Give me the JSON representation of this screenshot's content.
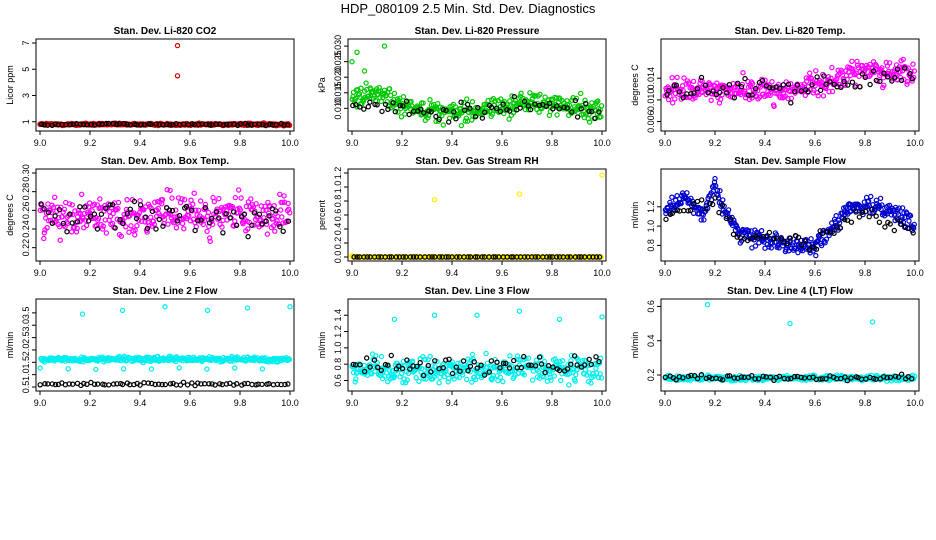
{
  "main_title": "HDP_080109  2.5 Min. Std. Dev. Diagnostics",
  "chart_data": [
    {
      "type": "scatter",
      "title": "Stan. Dev. Li-820 CO2",
      "ylabel": "Licor ppm",
      "xlim": [
        9.0,
        10.0
      ],
      "ylim": [
        0.6,
        7.0
      ],
      "xticks": [
        "9.0",
        "9.2",
        "9.4",
        "9.6",
        "9.8",
        "10.0"
      ],
      "yticks": [
        1,
        3,
        5,
        7
      ],
      "ytick_labels": [
        "1",
        "3",
        "5",
        "7"
      ],
      "series": [
        {
          "name": "main",
          "color": "#cc0000",
          "base": 0.8,
          "noise": 0.07,
          "outliers": [
            [
              9.55,
              6.8
            ],
            [
              9.55,
              4.5
            ]
          ]
        },
        {
          "name": "black",
          "color": "#000000",
          "base": 0.8,
          "noise": 0.07
        }
      ]
    },
    {
      "type": "scatter",
      "title": "Stan. Dev. Li-820 Pressure",
      "ylabel": "kPa",
      "xlim": [
        9.0,
        10.0
      ],
      "ylim": [
        0.004,
        0.031
      ],
      "xticks": [
        "9.0",
        "9.2",
        "9.4",
        "9.6",
        "9.8",
        "10.0"
      ],
      "yticks": [
        0.01,
        0.015,
        0.02,
        0.025,
        0.03
      ],
      "ytick_labels": [
        "0.010",
        "0.015",
        "0.020",
        "0.025",
        "0.030"
      ],
      "series": [
        {
          "name": "main",
          "color": "#00c800",
          "trend": [
            [
              9.0,
              0.013
            ],
            [
              9.1,
              0.015
            ],
            [
              9.2,
              0.011
            ],
            [
              9.4,
              0.0085
            ],
            [
              9.6,
              0.0105
            ],
            [
              9.7,
              0.012
            ],
            [
              10.0,
              0.0095
            ]
          ],
          "noise": 0.0028,
          "outliers": [
            [
              9.0,
              0.025
            ],
            [
              9.02,
              0.028
            ],
            [
              9.05,
              0.022
            ],
            [
              9.13,
              0.03
            ]
          ]
        },
        {
          "name": "black",
          "color": "#000000",
          "trend": [
            [
              9.0,
              0.011
            ],
            [
              9.4,
              0.008
            ],
            [
              9.7,
              0.012
            ],
            [
              10.0,
              0.008
            ]
          ],
          "noise": 0.0025
        }
      ]
    },
    {
      "type": "scatter",
      "title": "Stan. Dev. Li-820 Temp.",
      "ylabel": "degrees C",
      "xlim": [
        9.0,
        10.0
      ],
      "ylim": [
        0.005,
        0.0205
      ],
      "xticks": [
        "9.0",
        "9.2",
        "9.4",
        "9.6",
        "9.8",
        "10.0"
      ],
      "yticks": [
        0.006,
        0.01,
        0.014
      ],
      "ytick_labels": [
        "0.006",
        "0.010",
        "0.014"
      ],
      "series": [
        {
          "name": "main",
          "color": "#ff00ff",
          "trend": [
            [
              9.0,
              0.0115
            ],
            [
              9.3,
              0.012
            ],
            [
              9.5,
              0.0115
            ],
            [
              9.65,
              0.0135
            ],
            [
              9.8,
              0.0155
            ],
            [
              10.0,
              0.015
            ]
          ],
          "noise": 0.0018
        },
        {
          "name": "black",
          "color": "#000000",
          "trend": [
            [
              9.0,
              0.0115
            ],
            [
              9.5,
              0.012
            ],
            [
              10.0,
              0.015
            ]
          ],
          "noise": 0.0015
        }
      ]
    },
    {
      "type": "scatter",
      "title": "Stan. Dev. Amb. Box Temp.",
      "ylabel": "degrees C",
      "xlim": [
        9.0,
        10.0
      ],
      "ylim": [
        0.21,
        0.3
      ],
      "xticks": [
        "9.0",
        "9.2",
        "9.4",
        "9.6",
        "9.8",
        "10.0"
      ],
      "yticks": [
        0.22,
        0.24,
        0.26,
        0.28,
        0.3
      ],
      "ytick_labels": [
        "0.22",
        "0.24",
        "0.26",
        "0.28",
        "0.30"
      ],
      "series": [
        {
          "name": "main",
          "color": "#ff00ff",
          "base": 0.255,
          "noise": 0.016
        },
        {
          "name": "black",
          "color": "#000000",
          "base": 0.252,
          "noise": 0.015
        }
      ]
    },
    {
      "type": "scatter",
      "title": "Stan. Dev. Gas Stream RH",
      "ylabel": "percent",
      "xlim": [
        9.0,
        10.0
      ],
      "ylim": [
        0.0,
        1.2
      ],
      "xticks": [
        "9.0",
        "9.2",
        "9.4",
        "9.6",
        "9.8",
        "10.0"
      ],
      "yticks": [
        0.0,
        0.2,
        0.4,
        0.6,
        0.8,
        1.0,
        1.2
      ],
      "ytick_labels": [
        "0.0",
        "0.2",
        "0.4",
        "0.6",
        "0.8",
        "1.0",
        "1.2"
      ],
      "series": [
        {
          "name": "main",
          "color": "#ffee00",
          "base": 0.0,
          "noise": 0.0,
          "outliers": [
            [
              9.33,
              0.82
            ],
            [
              9.67,
              0.9
            ],
            [
              10.0,
              1.17
            ],
            [
              9.0,
              0.02
            ]
          ]
        },
        {
          "name": "black",
          "color": "#000000",
          "base": 0.0,
          "noise": 0.0
        }
      ]
    },
    {
      "type": "scatter",
      "title": "Stan. Dev. Sample Flow",
      "ylabel": "ml/min",
      "xlim": [
        9.0,
        10.0
      ],
      "ylim": [
        0.68,
        1.55
      ],
      "xticks": [
        "9.0",
        "9.2",
        "9.4",
        "9.6",
        "9.8",
        "10.0"
      ],
      "yticks": [
        0.8,
        1.0,
        1.2
      ],
      "ytick_labels": [
        "0.8",
        "1.0",
        "1.2"
      ],
      "series": [
        {
          "name": "main",
          "color": "#0000cc",
          "trend": [
            [
              9.0,
              1.15
            ],
            [
              9.08,
              1.3
            ],
            [
              9.15,
              1.1
            ],
            [
              9.2,
              1.42
            ],
            [
              9.23,
              1.2
            ],
            [
              9.3,
              0.92
            ],
            [
              9.5,
              0.82
            ],
            [
              9.6,
              0.8
            ],
            [
              9.66,
              0.95
            ],
            [
              9.72,
              1.15
            ],
            [
              9.85,
              1.22
            ],
            [
              9.95,
              1.1
            ],
            [
              10.0,
              0.98
            ]
          ],
          "noise": 0.07
        },
        {
          "name": "black",
          "color": "#000000",
          "trend": [
            [
              9.0,
              1.1
            ],
            [
              9.2,
              1.3
            ],
            [
              9.3,
              0.9
            ],
            [
              9.6,
              0.82
            ],
            [
              9.75,
              1.15
            ],
            [
              10.0,
              1.0
            ]
          ],
          "noise": 0.07
        }
      ]
    },
    {
      "type": "scatter",
      "title": "Stan. Dev. Line 2 Flow",
      "ylabel": "ml/min",
      "xlim": [
        9.0,
        10.0
      ],
      "ylim": [
        0.5,
        3.9
      ],
      "xticks": [
        "9.0",
        "9.2",
        "9.4",
        "9.6",
        "9.8",
        "10.0"
      ],
      "yticks": [
        0.5,
        1.0,
        1.5,
        2.0,
        2.5,
        3.0,
        3.5
      ],
      "ytick_labels": [
        "0.5",
        "1.0",
        "1.5",
        "2.0",
        "2.5",
        "3.0",
        "3.5"
      ],
      "series": [
        {
          "name": "main",
          "color": "#00eeee",
          "base": 1.62,
          "noise": 0.08,
          "outliers": [
            [
              9.17,
              3.45
            ],
            [
              9.33,
              3.6
            ],
            [
              9.5,
              3.75
            ],
            [
              9.67,
              3.6
            ],
            [
              9.83,
              3.7
            ],
            [
              10.0,
              3.75
            ]
          ]
        },
        {
          "name": "black",
          "color": "#000000",
          "base": 0.62,
          "noise": 0.05
        }
      ]
    },
    {
      "type": "scatter",
      "title": "Stan. Dev. Line 3 Flow",
      "ylabel": "ml/min",
      "xlim": [
        9.0,
        10.0
      ],
      "ylim": [
        0.52,
        1.55
      ],
      "xticks": [
        "9.0",
        "9.2",
        "9.4",
        "9.6",
        "9.8",
        "10.0"
      ],
      "yticks": [
        0.6,
        0.8,
        1.0,
        1.2,
        1.4
      ],
      "ytick_labels": [
        "0.6",
        "0.8",
        "1.0",
        "1.2",
        "1.4"
      ],
      "series": [
        {
          "name": "main",
          "color": "#00eeee",
          "base": 0.74,
          "noise": 0.13,
          "outliers": [
            [
              9.17,
              1.35
            ],
            [
              9.33,
              1.4
            ],
            [
              9.5,
              1.4
            ],
            [
              9.67,
              1.45
            ],
            [
              9.83,
              1.35
            ],
            [
              10.0,
              1.38
            ]
          ]
        },
        {
          "name": "black",
          "color": "#000000",
          "base": 0.78,
          "noise": 0.09
        }
      ]
    },
    {
      "type": "scatter",
      "title": "Stan. Dev. Line 4 (LT) Flow",
      "ylabel": "ml/min",
      "xlim": [
        9.0,
        10.0
      ],
      "ylim": [
        0.13,
        0.62
      ],
      "xticks": [
        "9.0",
        "9.2",
        "9.4",
        "9.6",
        "9.8",
        "10.0"
      ],
      "yticks": [
        0.2,
        0.4,
        0.6
      ],
      "ytick_labels": [
        "0.2",
        "0.4",
        "0.6"
      ],
      "series": [
        {
          "name": "main",
          "color": "#00eeee",
          "base": 0.182,
          "noise": 0.012,
          "outliers": [
            [
              9.17,
              0.61
            ],
            [
              9.5,
              0.5
            ],
            [
              9.83,
              0.51
            ]
          ]
        },
        {
          "name": "black",
          "color": "#000000",
          "base": 0.185,
          "noise": 0.012
        }
      ]
    }
  ]
}
